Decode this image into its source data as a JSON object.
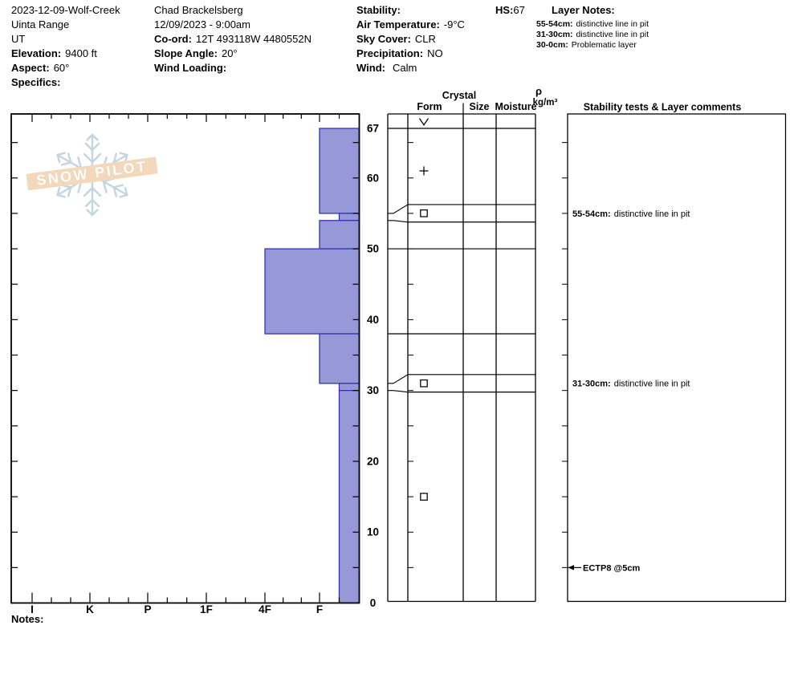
{
  "header": {
    "left": {
      "title": "2023-12-09-Wolf-Creek",
      "range": "Uinta Range",
      "state": "UT",
      "elevation_label": "Elevation:",
      "elevation": "9400 ft",
      "aspect_label": "Aspect:",
      "aspect": "60°",
      "specifics_label": "Specifics:"
    },
    "middle": {
      "observer": "Chad Brackelsberg",
      "datetime": "12/09/2023 - 9:00am",
      "coord_label": "Co-ord:",
      "coord": "12T 493118W 4480552N",
      "slope_label": "Slope Angle:",
      "slope": "20°",
      "wind_loading_label": "Wind Loading:"
    },
    "right": {
      "stability_label": "Stability:",
      "air_temp_label": "Air Temperature:",
      "air_temp": "-9°C",
      "sky_label": "Sky Cover:",
      "sky": "CLR",
      "precip_label": "Precipitation:",
      "precip": "NO",
      "wind_label": "Wind:",
      "wind": "Calm"
    },
    "hs_label": "HS:",
    "hs_value": "67",
    "layer_notes": {
      "title": "Layer Notes:",
      "notes": [
        {
          "range": "55-54cm:",
          "text": "distinctive line in pit"
        },
        {
          "range": "31-30cm:",
          "text": "distinctive line in pit"
        },
        {
          "range": "30-0cm:",
          "text": "Problematic layer"
        }
      ]
    }
  },
  "notes_label": "Notes:",
  "logo": {
    "text": "SNOW PILOT"
  },
  "chart_data": {
    "type": "snow-profile-bar",
    "title": "Snow pit hardness profile",
    "hs_cm": 67,
    "depth_axis": {
      "unit": "cm",
      "labels": [
        67,
        60,
        50,
        40,
        30,
        20,
        10,
        0
      ],
      "minor_tick_cm": 5
    },
    "hardness_axis": {
      "labels": [
        "I",
        "K",
        "P",
        "1F",
        "4F",
        "F"
      ]
    },
    "columns": {
      "crystal": "Crystal",
      "form": "Form",
      "size": "Size",
      "moisture": "Moisture",
      "density_rho": "ρ",
      "density_unit": "kg/m³",
      "comments": "Stability tests & Layer comments"
    },
    "surface_grain": {
      "code": "SH",
      "symbol": "∨"
    },
    "layers": [
      {
        "top_cm": 67,
        "bottom_cm": 55,
        "hardness": "F",
        "grain": {
          "code": "PP",
          "symbol": "+"
        }
      },
      {
        "top_cm": 55,
        "bottom_cm": 54,
        "hardness": "F-",
        "grain": {
          "code": "FC",
          "symbol": "□"
        },
        "expanded": true,
        "comment_bold": "55-54cm:",
        "comment": "distinctive line in pit"
      },
      {
        "top_cm": 54,
        "bottom_cm": 50,
        "hardness": "F"
      },
      {
        "top_cm": 50,
        "bottom_cm": 38,
        "hardness": "4F"
      },
      {
        "top_cm": 38,
        "bottom_cm": 31,
        "hardness": "F"
      },
      {
        "top_cm": 31,
        "bottom_cm": 30,
        "hardness": "F-",
        "grain": {
          "code": "FC",
          "symbol": "□"
        },
        "expanded": true,
        "comment_bold": "31-30cm:",
        "comment": "distinctive line in pit"
      },
      {
        "top_cm": 30,
        "bottom_cm": 0,
        "hardness": "F-",
        "grain": {
          "code": "FC",
          "symbol": "□"
        }
      }
    ],
    "stability_tests": [
      {
        "label": "ECTP8 @5cm",
        "depth_cm": 5
      }
    ],
    "colors": {
      "bar_fill": "#9798d8",
      "bar_border": "#3434b4",
      "line": "#000000"
    }
  }
}
